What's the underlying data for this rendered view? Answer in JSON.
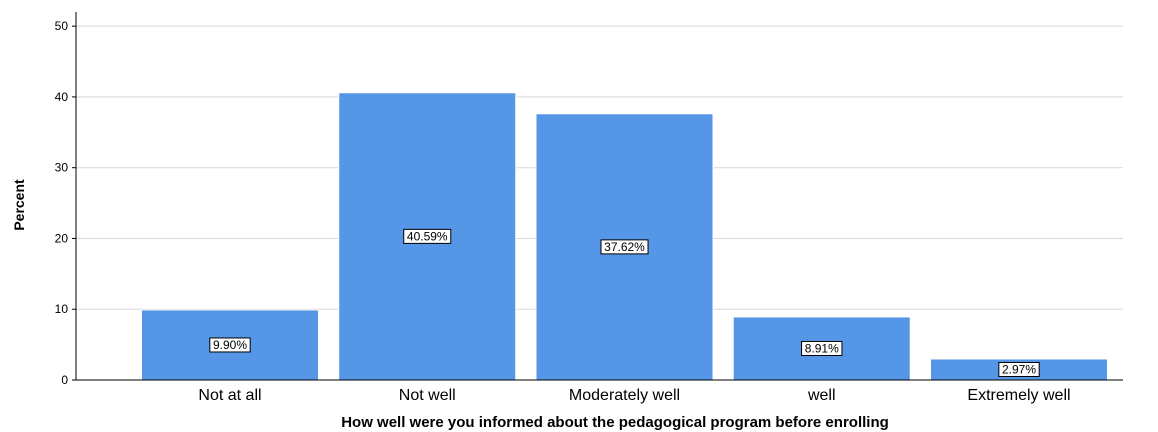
{
  "chart_data": {
    "type": "bar",
    "categories": [
      "Not at all",
      "Not well",
      "Moderately well",
      "well",
      "Extremely well"
    ],
    "values": [
      9.9,
      40.59,
      37.62,
      8.91,
      2.97
    ],
    "data_labels": [
      "9.90%",
      "40.59%",
      "37.62%",
      "8.91%",
      "2.97%"
    ],
    "xlabel": "How well were you informed about the pedagogical program before enrolling",
    "ylabel": "Percent",
    "ylim": [
      0,
      52
    ],
    "yticks": [
      0,
      10,
      20,
      30,
      40,
      50
    ],
    "grid": true,
    "legend": "none"
  },
  "colors": {
    "bar": "#5596E6",
    "grid": "#D9D9D9",
    "axis": "#000000",
    "label_box_border": "#000000",
    "label_box_fill": "#FFFFFF"
  }
}
